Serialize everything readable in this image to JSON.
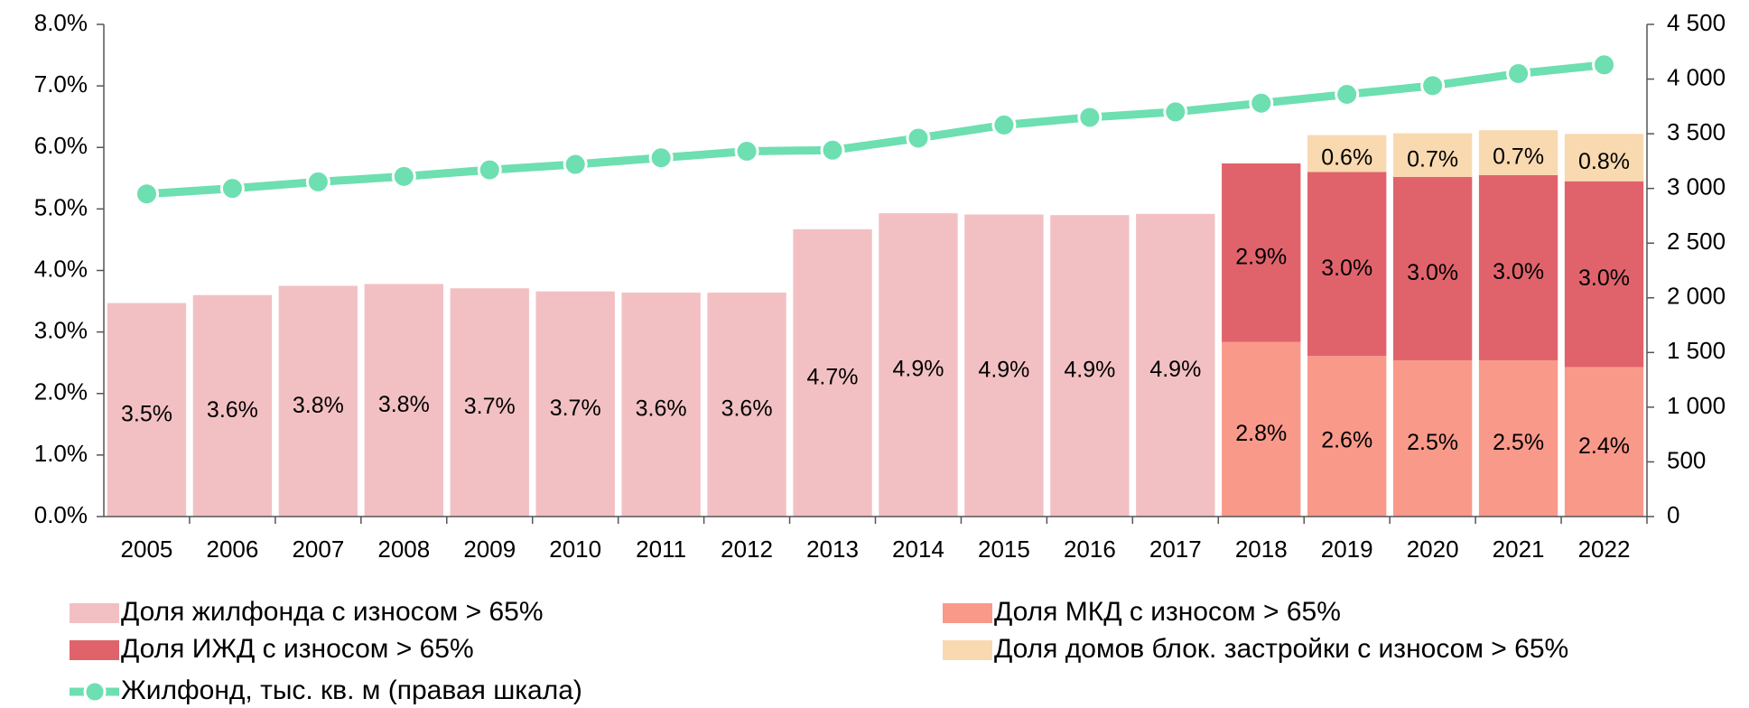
{
  "chart_data": {
    "type": "bar",
    "categories": [
      "2005",
      "2006",
      "2007",
      "2008",
      "2009",
      "2010",
      "2011",
      "2012",
      "2013",
      "2014",
      "2015",
      "2016",
      "2017",
      "2018",
      "2019",
      "2020",
      "2021",
      "2022"
    ],
    "stacked": true,
    "series": [
      {
        "name": "Доля жилфонда с износом > 65%",
        "color": "#f2c0c3",
        "values": [
          3.47,
          3.6,
          3.75,
          3.78,
          3.71,
          3.66,
          3.64,
          3.64,
          4.67,
          4.93,
          4.91,
          4.9,
          4.92,
          null,
          null,
          null,
          null,
          null
        ],
        "value_labels": [
          "3.5%",
          "3.6%",
          "3.8%",
          "3.8%",
          "3.7%",
          "3.7%",
          "3.6%",
          "3.6%",
          "4.7%",
          "4.9%",
          "4.9%",
          "4.9%",
          "4.9%",
          null,
          null,
          null,
          null,
          null
        ]
      },
      {
        "name": "Доля МКД с износом > 65%",
        "color": "#f9998a",
        "values": [
          null,
          null,
          null,
          null,
          null,
          null,
          null,
          null,
          null,
          null,
          null,
          null,
          null,
          2.84,
          2.61,
          2.54,
          2.54,
          2.43
        ],
        "value_labels": [
          null,
          null,
          null,
          null,
          null,
          null,
          null,
          null,
          null,
          null,
          null,
          null,
          null,
          "2.8%",
          "2.6%",
          "2.5%",
          "2.5%",
          "2.4%"
        ]
      },
      {
        "name": "Доля ИЖД с износом > 65%",
        "color": "#e0636c",
        "values": [
          null,
          null,
          null,
          null,
          null,
          null,
          null,
          null,
          null,
          null,
          null,
          null,
          null,
          2.9,
          2.99,
          2.98,
          3.01,
          3.02
        ],
        "value_labels": [
          null,
          null,
          null,
          null,
          null,
          null,
          null,
          null,
          null,
          null,
          null,
          null,
          null,
          "2.9%",
          "3.0%",
          "3.0%",
          "3.0%",
          "3.0%"
        ]
      },
      {
        "name": "Доля домов блок. застройки с износом > 65%",
        "color": "#f9d9b0",
        "values": [
          null,
          null,
          null,
          null,
          null,
          null,
          null,
          null,
          null,
          null,
          null,
          null,
          null,
          null,
          0.6,
          0.71,
          0.73,
          0.77
        ],
        "value_labels": [
          null,
          null,
          null,
          null,
          null,
          null,
          null,
          null,
          null,
          null,
          null,
          null,
          null,
          null,
          "0.6%",
          "0.7%",
          "0.7%",
          "0.8%"
        ]
      },
      {
        "name": "Жилфонд, тыс. кв. м (правая шкала)",
        "color": "#6ddfb0",
        "type": "line",
        "axis": "y2",
        "values": [
          2950,
          3000,
          3060,
          3110,
          3170,
          3220,
          3280,
          3340,
          3350,
          3460,
          3580,
          3650,
          3700,
          3780,
          3860,
          3940,
          4050,
          4130
        ]
      }
    ],
    "ylim": [
      0,
      8
    ],
    "yticks": [
      {
        "value": 0,
        "label": "0.0%"
      },
      {
        "value": 1,
        "label": "1.0%"
      },
      {
        "value": 2,
        "label": "2.0%"
      },
      {
        "value": 3,
        "label": "3.0%"
      },
      {
        "value": 4,
        "label": "4.0%"
      },
      {
        "value": 5,
        "label": "5.0%"
      },
      {
        "value": 6,
        "label": "6.0%"
      },
      {
        "value": 7,
        "label": "7.0%"
      },
      {
        "value": 8,
        "label": "8.0%"
      }
    ],
    "y2lim": [
      0,
      4500
    ],
    "y2ticks": [
      0,
      500,
      {
        "value": 1000,
        "label": "1 000"
      },
      {
        "value": 1500,
        "label": "1 500"
      },
      {
        "value": 2000,
        "label": "2 000"
      },
      {
        "value": 2500,
        "label": "2 500"
      },
      {
        "value": 3000,
        "label": "3 000"
      },
      {
        "value": 3500,
        "label": "3 500"
      },
      {
        "value": 4000,
        "label": "4 000"
      },
      {
        "value": 4500,
        "label": "4 500"
      }
    ],
    "grid": false
  }
}
